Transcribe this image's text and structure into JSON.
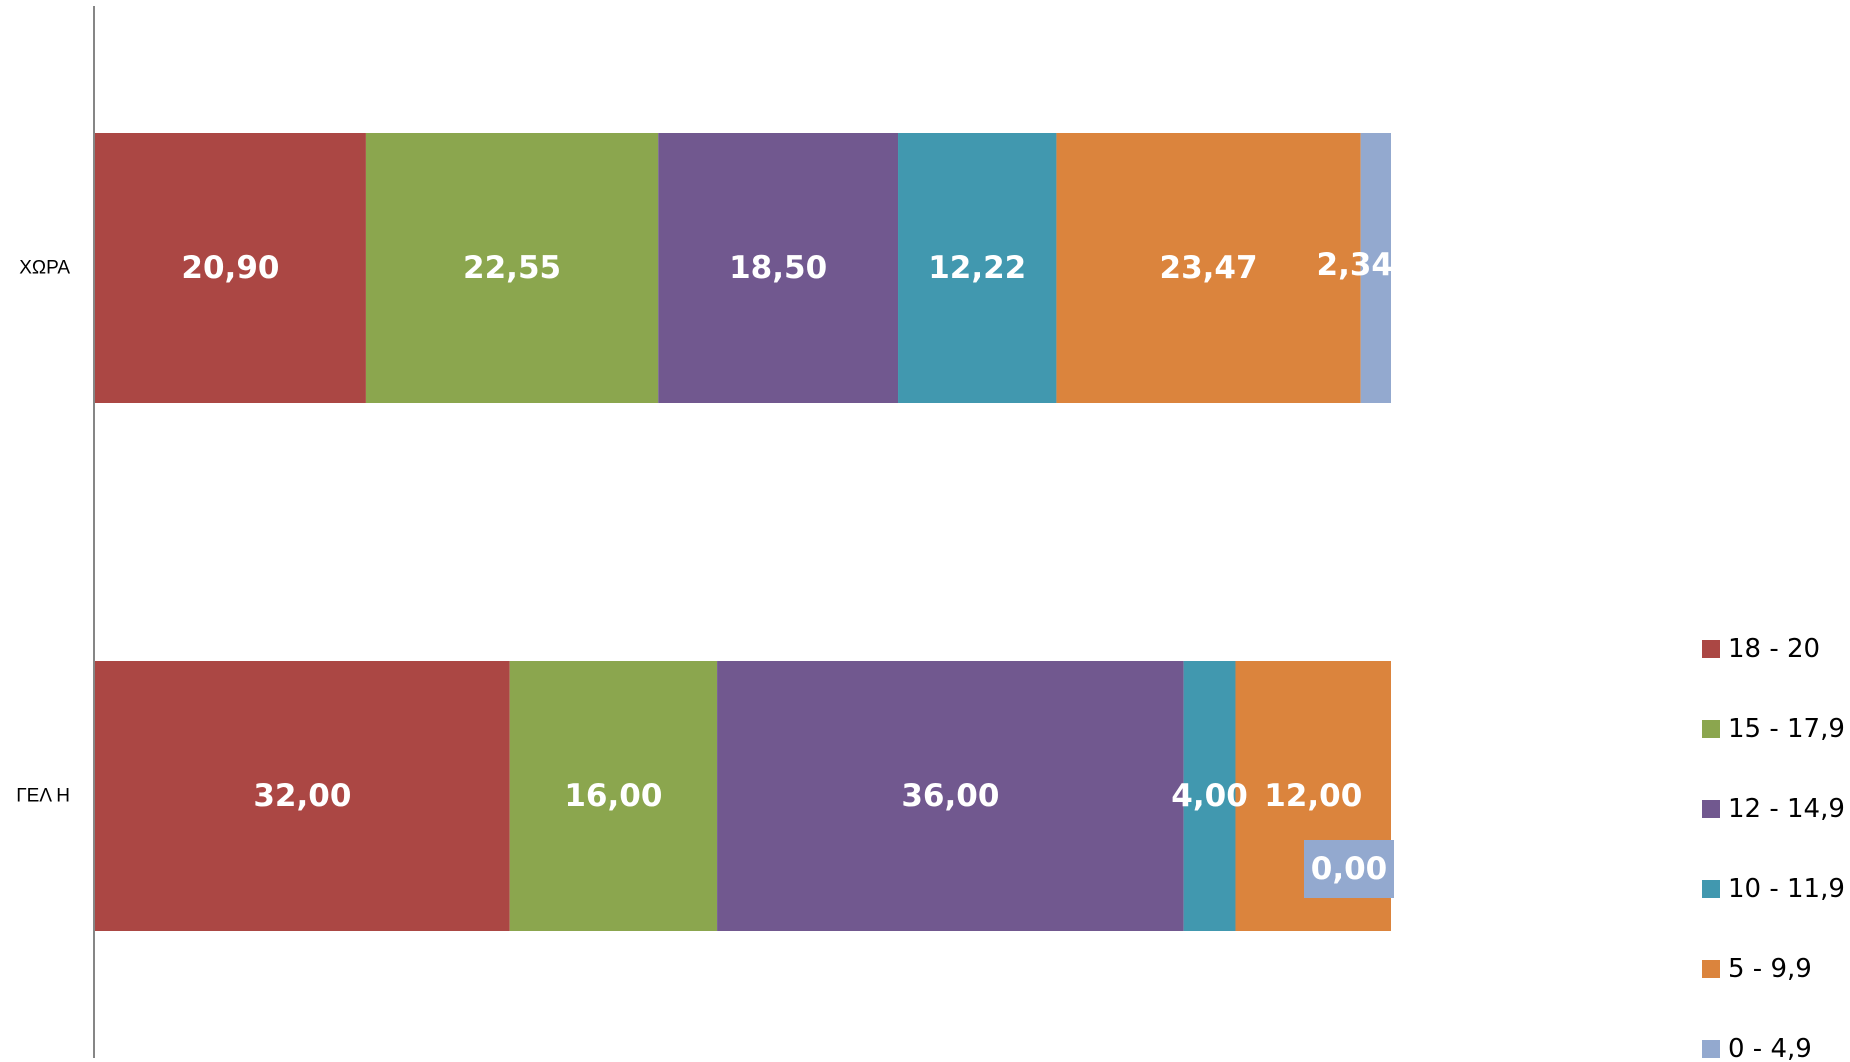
{
  "chart_data": {
    "type": "bar",
    "orientation": "horizontal",
    "stacked": "percent",
    "categories": [
      "ΧΩΡΑ",
      "ΓΕΛ Η"
    ],
    "series": [
      {
        "name": "18 - 20",
        "color": "#AB4744",
        "values": [
          20.9,
          32.0
        ],
        "labels": [
          "20,90",
          "32,00"
        ]
      },
      {
        "name": "15 - 17,9",
        "color": "#8BA64E",
        "values": [
          22.55,
          16.0
        ],
        "labels": [
          "22,55",
          "16,00"
        ]
      },
      {
        "name": "12 - 14,9",
        "color": "#71588F",
        "values": [
          18.5,
          36.0
        ],
        "labels": [
          "18,50",
          "36,00"
        ]
      },
      {
        "name": "10 - 11,9",
        "color": "#4198AF",
        "values": [
          12.22,
          4.0
        ],
        "labels": [
          "12,22",
          "4,00"
        ]
      },
      {
        "name": "5 - 9,9",
        "color": "#DB843D",
        "values": [
          23.47,
          12.0
        ],
        "labels": [
          "23,47",
          "12,00"
        ]
      },
      {
        "name": "0 - 4,9",
        "color": "#93A9CF",
        "values": [
          2.34,
          0.0
        ],
        "labels": [
          "2,34",
          "0,00"
        ]
      }
    ],
    "xlim": [
      0,
      100
    ],
    "grid": false,
    "legend": "right",
    "title": "",
    "xlabel": "",
    "ylabel": ""
  }
}
